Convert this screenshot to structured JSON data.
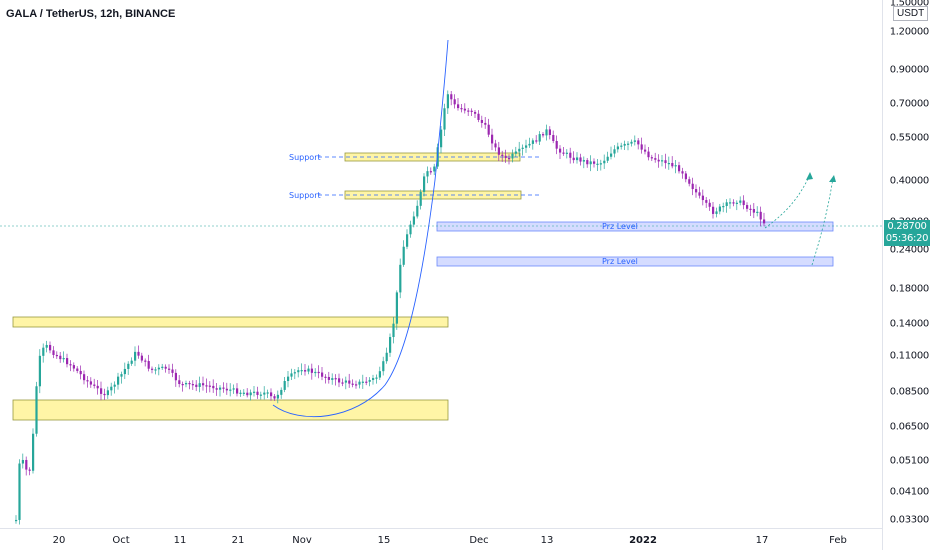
{
  "title": "GALA / TetherUS, 12h, BINANCE",
  "unit_label": "USDT",
  "current_price": "0.28700",
  "countdown": "05:36:20",
  "price_ticks": [
    "1.50000",
    "1.20000",
    "0.90000",
    "0.70000",
    "0.55000",
    "0.40000",
    "0.30000",
    "0.24000",
    "0.18000",
    "0.14000",
    "0.11000",
    "0.08500",
    "0.06500",
    "0.05100",
    "0.04100",
    "0.03300"
  ],
  "time_ticks": [
    "20",
    "Oct",
    "11",
    "21",
    "Nov",
    "15",
    "Dec",
    "13",
    "2022",
    "17",
    "Feb"
  ],
  "annotations": {
    "support_1": "Support",
    "support_2": "Support",
    "prz_1": "Prz Level",
    "prz_2": "Prz Level"
  },
  "colors": {
    "up": "#26a69a",
    "down": "#9c27b0",
    "zone_fill": "#fff59d",
    "prz_fill": "#d1d9ff",
    "accent": "#2962ff"
  }
}
